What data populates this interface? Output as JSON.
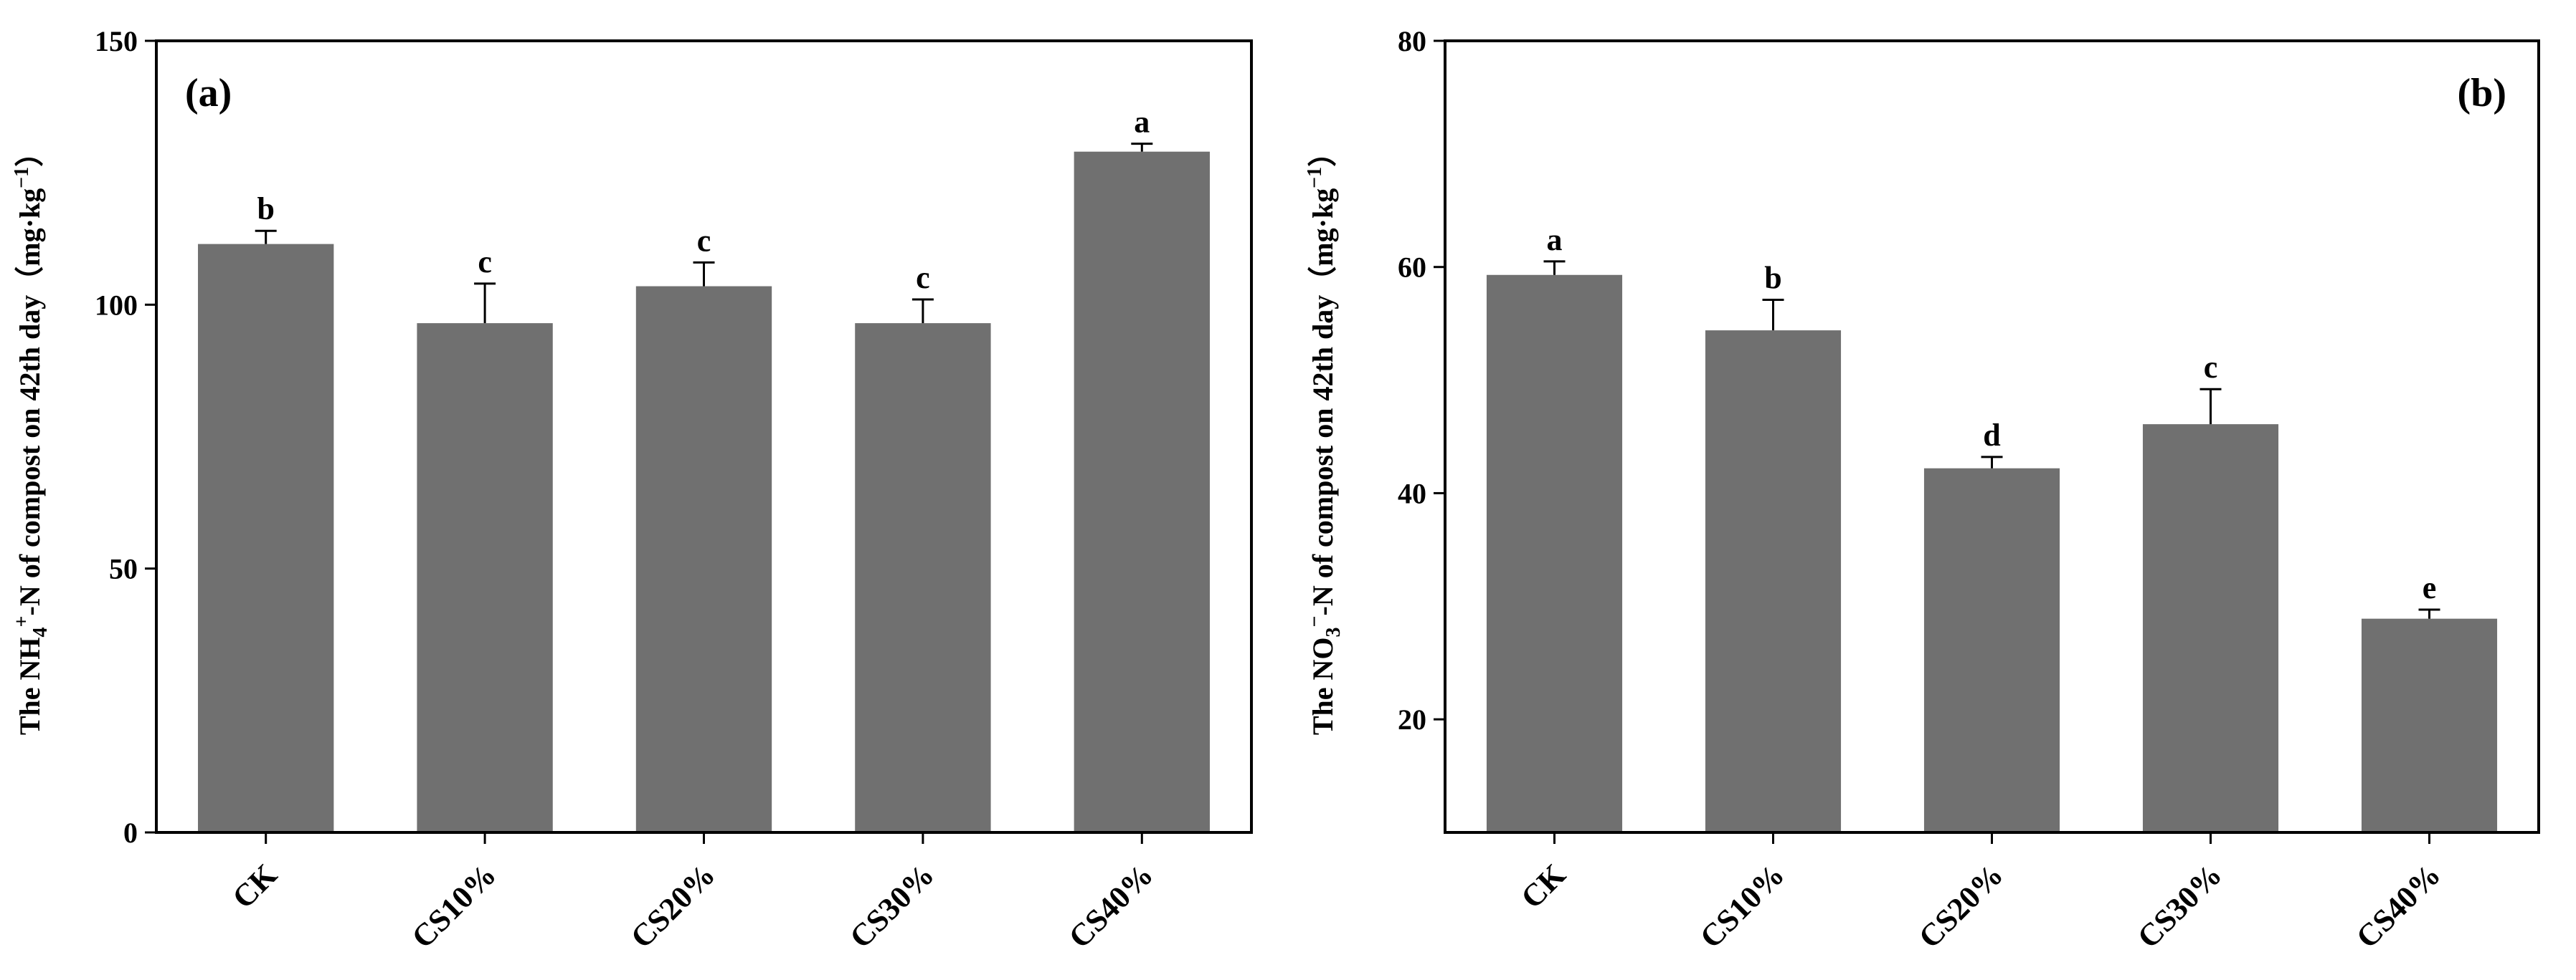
{
  "chart_data": [
    {
      "type": "bar",
      "panel_label": "(a)",
      "categories": [
        "CK",
        "CS10%",
        "CS20%",
        "CS30%",
        "CS40%"
      ],
      "values": [
        111.5,
        96.5,
        103.5,
        96.5,
        129.0
      ],
      "errors": [
        2.5,
        7.5,
        4.5,
        4.5,
        1.5
      ],
      "significance": [
        "b",
        "c",
        "c",
        "c",
        "a"
      ],
      "ylabel": {
        "prefix": "The NH",
        "sub": "4",
        "sup": "+",
        "suffix": "-N of compost on 42th day（mg·kg",
        "unit_sup": "−1",
        "close": "）"
      },
      "ylim": [
        0,
        150
      ],
      "yticks": [
        0,
        50,
        100,
        150
      ],
      "bar_color": "#707070",
      "grid": false,
      "legend": "none"
    },
    {
      "type": "bar",
      "panel_label": "(b)",
      "categories": [
        "CK",
        "CS10%",
        "CS20%",
        "CS30%",
        "CS40%"
      ],
      "values": [
        59.3,
        54.4,
        42.2,
        46.1,
        28.9
      ],
      "errors": [
        1.2,
        2.7,
        1.0,
        3.1,
        0.8
      ],
      "significance": [
        "a",
        "b",
        "d",
        "c",
        "e"
      ],
      "ylabel": {
        "prefix": "The NO",
        "sub": "3",
        "sup": "−",
        "suffix": "-N of compost on 42th day（mg·kg",
        "unit_sup": "−1",
        "close": "）"
      },
      "ylim": [
        10,
        80
      ],
      "yticks": [
        20,
        40,
        60,
        80
      ],
      "bar_color": "#707070",
      "grid": false,
      "legend": "none"
    }
  ]
}
